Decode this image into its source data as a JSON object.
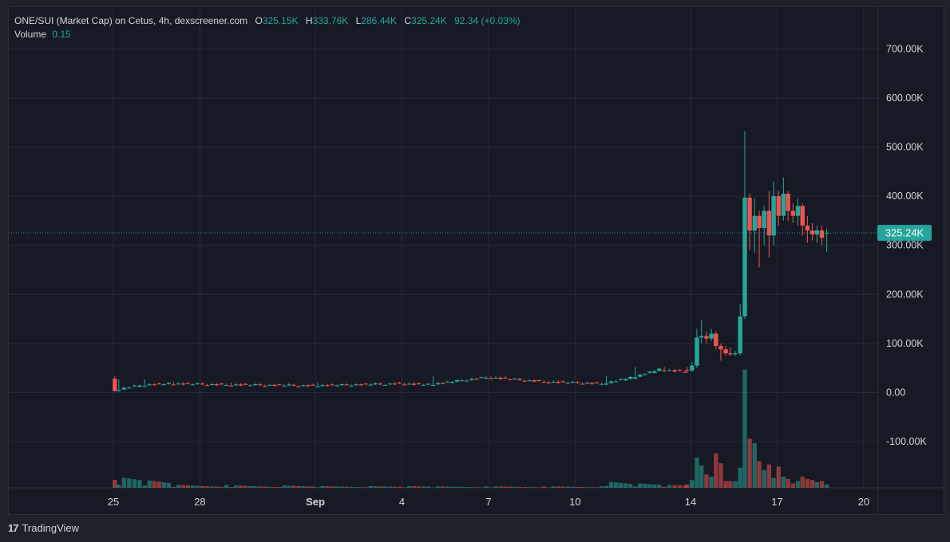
{
  "legend": {
    "symbol": "ONE/SUI (Market Cap) on Cetus, 4h, dexscreener.com",
    "open_label": "O",
    "open_value": "325.15K",
    "high_label": "H",
    "high_value": "333.76K",
    "low_label": "L",
    "low_value": "286.44K",
    "close_label": "C",
    "close_value": "325.24K",
    "change": "92.34 (+0.03%)",
    "volume_label": "Volume",
    "volume_value": "0.15"
  },
  "footer": {
    "brand": "TradingView",
    "logo_glyph": "17"
  },
  "colors": {
    "up": "#26a69a",
    "down": "#ef5350",
    "background": "#171a24",
    "grid": "#262a35",
    "text": "#d1d4dc"
  },
  "chart_data": {
    "type": "candlestick",
    "title": "ONE/SUI (Market Cap) on Cetus, 4h, dexscreener.com",
    "y_axis": {
      "ticks": [
        700000,
        600000,
        500000,
        400000,
        300000,
        200000,
        100000,
        0,
        -100000
      ],
      "tick_labels": [
        "700.00K",
        "600.00K",
        "500.00K",
        "400.00K",
        "300.00K",
        "200.00K",
        "100.00K",
        "0.00",
        "-100.00K"
      ],
      "range": [
        -190000,
        750000
      ]
    },
    "x_axis": {
      "range_days": [
        "Aug 25",
        "Sep 21"
      ],
      "ticks": [
        {
          "label": "25",
          "day": 0,
          "bold": false
        },
        {
          "label": "28",
          "day": 3,
          "bold": false
        },
        {
          "label": "Sep",
          "day": 7,
          "bold": true
        },
        {
          "label": "4",
          "day": 10,
          "bold": false
        },
        {
          "label": "7",
          "day": 13,
          "bold": false
        },
        {
          "label": "10",
          "day": 16,
          "bold": false
        },
        {
          "label": "14",
          "day": 20,
          "bold": false
        },
        {
          "label": "17",
          "day": 23,
          "bold": false
        },
        {
          "label": "20",
          "day": 26,
          "bold": false
        }
      ]
    },
    "last_price": {
      "value": 325240,
      "label": "325.24K"
    },
    "segments": [
      {
        "from_day": 0.0,
        "to_day": 0.1,
        "o": 30000,
        "c": 5000,
        "h": 33000,
        "l": 2000,
        "vol": 0.9
      },
      {
        "from_day": 0.1,
        "to_day": 1.0,
        "o": 5000,
        "c": 15000,
        "h": 27000,
        "l": 4000,
        "vol": 0.35
      },
      {
        "from_day": 1.0,
        "to_day": 2.0,
        "o": 15000,
        "c": 18000,
        "h": 27000,
        "l": 10000,
        "vol": 0.25
      },
      {
        "from_day": 2.0,
        "to_day": 4.0,
        "o": 18000,
        "c": 16000,
        "h": 22000,
        "l": 13000,
        "vol": 0.1
      },
      {
        "from_day": 4.0,
        "to_day": 7.0,
        "o": 16000,
        "c": 14000,
        "h": 20000,
        "l": 12000,
        "vol": 0.08
      },
      {
        "from_day": 7.0,
        "to_day": 10.0,
        "o": 14000,
        "c": 18000,
        "h": 21000,
        "l": 12000,
        "vol": 0.06
      },
      {
        "from_day": 10.0,
        "to_day": 11.0,
        "o": 18000,
        "c": 16000,
        "h": 20000,
        "l": 14000,
        "vol": 0.06
      },
      {
        "from_day": 11.0,
        "to_day": 13.0,
        "o": 16000,
        "c": 31000,
        "h": 34000,
        "l": 15000,
        "vol": 0.05
      },
      {
        "from_day": 13.0,
        "to_day": 15.0,
        "o": 31000,
        "c": 22000,
        "h": 33000,
        "l": 20000,
        "vol": 0.05
      },
      {
        "from_day": 15.0,
        "to_day": 17.0,
        "o": 22000,
        "c": 18000,
        "h": 24000,
        "l": 16000,
        "vol": 0.05
      },
      {
        "from_day": 17.0,
        "to_day": 18.0,
        "o": 18000,
        "c": 30000,
        "h": 34000,
        "l": 16000,
        "vol": 0.2
      },
      {
        "from_day": 18.0,
        "to_day": 19.0,
        "o": 30000,
        "c": 47000,
        "h": 52000,
        "l": 28000,
        "vol": 0.15
      },
      {
        "from_day": 19.0,
        "to_day": 19.9,
        "o": 47000,
        "c": 42000,
        "h": 52000,
        "l": 38000,
        "vol": 0.1
      }
    ],
    "candles": [
      {
        "day": 19.88,
        "o": 46000,
        "c": 45000,
        "h": 52000,
        "l": 40000,
        "vol": 0.15
      },
      {
        "day": 20.05,
        "o": 45000,
        "c": 55000,
        "h": 62000,
        "l": 42000,
        "vol": 0.35
      },
      {
        "day": 20.22,
        "o": 55000,
        "c": 112000,
        "h": 130000,
        "l": 50000,
        "vol": 1.35
      },
      {
        "day": 20.38,
        "o": 112000,
        "c": 115000,
        "h": 148000,
        "l": 100000,
        "vol": 1.0
      },
      {
        "day": 20.55,
        "o": 115000,
        "c": 110000,
        "h": 124000,
        "l": 100000,
        "vol": 0.6
      },
      {
        "day": 20.72,
        "o": 110000,
        "c": 120000,
        "h": 130000,
        "l": 105000,
        "vol": 0.5
      },
      {
        "day": 20.88,
        "o": 120000,
        "c": 95000,
        "h": 125000,
        "l": 88000,
        "vol": 1.55
      },
      {
        "day": 21.05,
        "o": 95000,
        "c": 88000,
        "h": 100000,
        "l": 65000,
        "vol": 1.1
      },
      {
        "day": 21.22,
        "o": 88000,
        "c": 80000,
        "h": 95000,
        "l": 75000,
        "vol": 0.3
      },
      {
        "day": 21.38,
        "o": 80000,
        "c": 78000,
        "h": 92000,
        "l": 74000,
        "vol": 0.3
      },
      {
        "day": 21.55,
        "o": 78000,
        "c": 80000,
        "h": 85000,
        "l": 74000,
        "vol": 0.3
      },
      {
        "day": 21.72,
        "o": 80000,
        "c": 155000,
        "h": 180000,
        "l": 76000,
        "vol": 0.9
      },
      {
        "day": 21.88,
        "o": 155000,
        "c": 397000,
        "h": 532000,
        "l": 150000,
        "vol": 5.3
      },
      {
        "day": 22.05,
        "o": 397000,
        "c": 330000,
        "h": 405000,
        "l": 290000,
        "vol": 2.2
      },
      {
        "day": 22.22,
        "o": 330000,
        "c": 360000,
        "h": 395000,
        "l": 285000,
        "vol": 2.0
      },
      {
        "day": 22.38,
        "o": 360000,
        "c": 335000,
        "h": 370000,
        "l": 255000,
        "vol": 1.2
      },
      {
        "day": 22.55,
        "o": 335000,
        "c": 370000,
        "h": 380000,
        "l": 300000,
        "vol": 0.8
      },
      {
        "day": 22.72,
        "o": 370000,
        "c": 320000,
        "h": 410000,
        "l": 275000,
        "vol": 1.05
      },
      {
        "day": 22.88,
        "o": 320000,
        "c": 400000,
        "h": 430000,
        "l": 300000,
        "vol": 0.45
      },
      {
        "day": 23.05,
        "o": 400000,
        "c": 360000,
        "h": 410000,
        "l": 340000,
        "vol": 0.95
      },
      {
        "day": 23.22,
        "o": 360000,
        "c": 405000,
        "h": 438000,
        "l": 350000,
        "vol": 0.5
      },
      {
        "day": 23.38,
        "o": 405000,
        "c": 370000,
        "h": 410000,
        "l": 350000,
        "vol": 0.4
      },
      {
        "day": 23.55,
        "o": 370000,
        "c": 360000,
        "h": 385000,
        "l": 345000,
        "vol": 0.2
      },
      {
        "day": 23.72,
        "o": 360000,
        "c": 380000,
        "h": 395000,
        "l": 340000,
        "vol": 0.3
      },
      {
        "day": 23.88,
        "o": 380000,
        "c": 340000,
        "h": 385000,
        "l": 320000,
        "vol": 0.5
      },
      {
        "day": 24.05,
        "o": 340000,
        "c": 330000,
        "h": 360000,
        "l": 305000,
        "vol": 0.4
      },
      {
        "day": 24.22,
        "o": 330000,
        "c": 322000,
        "h": 345000,
        "l": 310000,
        "vol": 0.35
      },
      {
        "day": 24.38,
        "o": 322000,
        "c": 330000,
        "h": 340000,
        "l": 305000,
        "vol": 0.25
      },
      {
        "day": 24.55,
        "o": 330000,
        "c": 315000,
        "h": 340000,
        "l": 300000,
        "vol": 0.3
      },
      {
        "day": 24.72,
        "o": 325150,
        "c": 325240,
        "h": 333760,
        "l": 286440,
        "vol": 0.15
      }
    ]
  }
}
